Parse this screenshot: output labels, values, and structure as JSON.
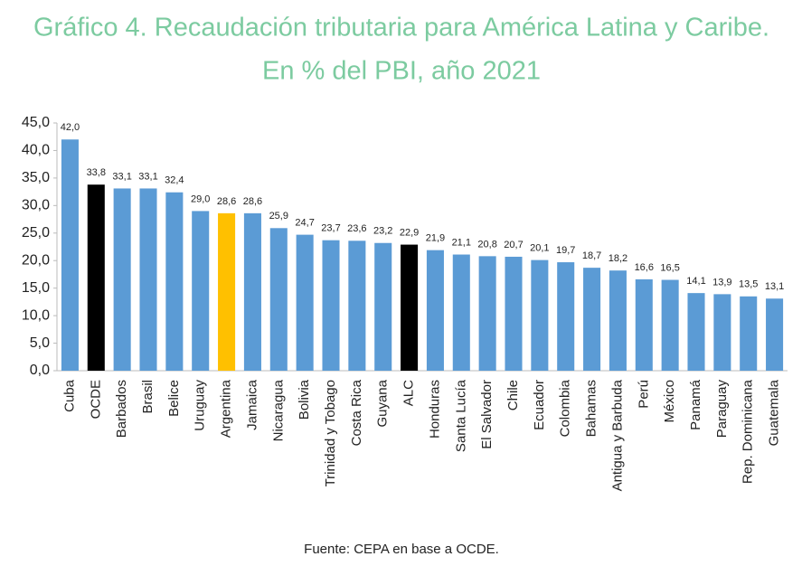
{
  "chart_data": {
    "type": "bar",
    "title": [
      "Gráfico 4. Recaudación tributaria para América Latina y Caribe.",
      "En % del PBI, año 2021"
    ],
    "source": "Fuente: CEPA en base a OCDE.",
    "categories": [
      "Cuba",
      "OCDE",
      "Barbados",
      "Brasil",
      "Belice",
      "Uruguay",
      "Argentina",
      "Jamaica",
      "Nicaragua",
      "Bolivia",
      "Trinidad y Tobago",
      "Costa Rica",
      "Guyana",
      "ALC",
      "Honduras",
      "Santa Lucía",
      "El Salvador",
      "Chile",
      "Ecuador",
      "Colombia",
      "Bahamas",
      "Antigua y Barbuda",
      "Perú",
      "México",
      "Panamá",
      "Paraguay",
      "Rep. Dominicana",
      "Guatemala"
    ],
    "values": [
      42.0,
      33.8,
      33.1,
      33.1,
      32.4,
      29.0,
      28.6,
      28.6,
      25.9,
      24.7,
      23.7,
      23.6,
      23.2,
      22.9,
      21.9,
      21.1,
      20.8,
      20.7,
      20.1,
      19.7,
      18.7,
      18.2,
      16.6,
      16.5,
      14.1,
      13.9,
      13.5,
      13.1
    ],
    "value_labels": [
      "42,0",
      "33,8",
      "33,1",
      "33,1",
      "32,4",
      "29,0",
      "28,6",
      "28,6",
      "25,9",
      "24,7",
      "23,7",
      "23,6",
      "23,2",
      "22,9",
      "21,9",
      "21,1",
      "20,8",
      "20,7",
      "20,1",
      "19,7",
      "18,7",
      "18,2",
      "16,6",
      "16,5",
      "14,1",
      "13,9",
      "13,5",
      "13,1"
    ],
    "colors": [
      "#5b9bd5",
      "#000000",
      "#5b9bd5",
      "#5b9bd5",
      "#5b9bd5",
      "#5b9bd5",
      "#ffc000",
      "#5b9bd5",
      "#5b9bd5",
      "#5b9bd5",
      "#5b9bd5",
      "#5b9bd5",
      "#5b9bd5",
      "#000000",
      "#5b9bd5",
      "#5b9bd5",
      "#5b9bd5",
      "#5b9bd5",
      "#5b9bd5",
      "#5b9bd5",
      "#5b9bd5",
      "#5b9bd5",
      "#5b9bd5",
      "#5b9bd5",
      "#5b9bd5",
      "#5b9bd5",
      "#5b9bd5",
      "#5b9bd5"
    ],
    "ylim": [
      0,
      45
    ],
    "yticks": [
      {
        "value": 0,
        "label": "0,0"
      },
      {
        "value": 5,
        "label": "5,0"
      },
      {
        "value": 10,
        "label": "10,0"
      },
      {
        "value": 15,
        "label": "15,0"
      },
      {
        "value": 20,
        "label": "20,0"
      },
      {
        "value": 25,
        "label": "25,0"
      },
      {
        "value": 30,
        "label": "30,0"
      },
      {
        "value": 35,
        "label": "35,0"
      },
      {
        "value": 40,
        "label": "40,0"
      },
      {
        "value": 45,
        "label": "45,0"
      }
    ],
    "grid": false
  }
}
